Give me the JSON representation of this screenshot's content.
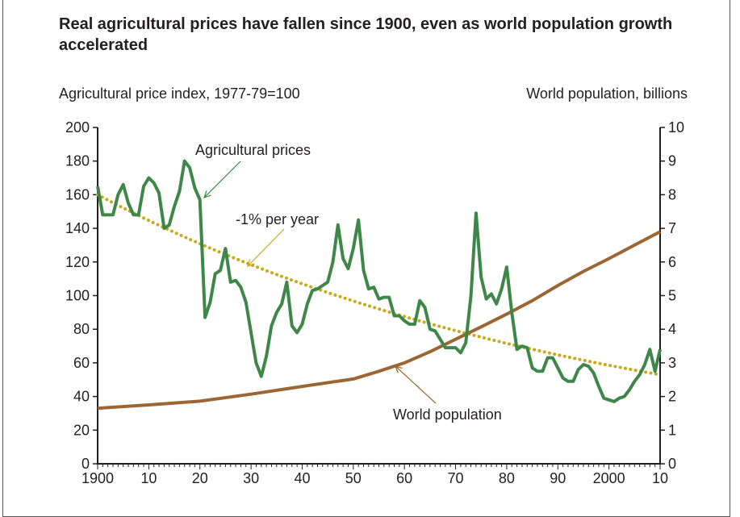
{
  "chart_data": {
    "type": "line",
    "title": "Real agricultural prices have fallen since 1900, even as world population growth accelerated",
    "ylabel_left": "Agricultural price index, 1977-79=100",
    "ylabel_right": "World population, billions",
    "xlim": [
      1900,
      2010
    ],
    "ylim_left": [
      0,
      200
    ],
    "ylim_right": [
      0,
      10
    ],
    "x_ticks": [
      "1900",
      "10",
      "20",
      "30",
      "40",
      "50",
      "60",
      "70",
      "80",
      "90",
      "2000",
      "10"
    ],
    "y_ticks_left": [
      "0",
      "20",
      "40",
      "60",
      "80",
      "100",
      "120",
      "140",
      "160",
      "180",
      "200"
    ],
    "y_ticks_right": [
      "0",
      "1",
      "2",
      "3",
      "4",
      "5",
      "6",
      "7",
      "8",
      "9",
      "10"
    ],
    "grid": false,
    "annotations": {
      "prices": "Agricultural prices",
      "trend": "-1% per year",
      "population": "World population"
    },
    "series": [
      {
        "name": "Agricultural prices",
        "axis": "left",
        "color": "#3e8748",
        "x_start": 1900,
        "values": [
          165,
          148,
          148,
          148,
          160,
          166,
          155,
          148,
          148,
          165,
          170,
          167,
          161,
          140,
          142,
          153,
          162,
          180,
          176,
          164,
          157,
          87,
          96,
          113,
          115,
          128,
          108,
          109,
          105,
          96,
          78,
          60,
          52,
          64,
          82,
          90,
          95,
          108,
          82,
          78,
          83,
          95,
          103,
          104,
          106,
          108,
          120,
          142,
          122,
          116,
          128,
          145,
          115,
          104,
          105,
          98,
          99,
          99,
          88,
          88,
          85,
          83,
          83,
          97,
          93,
          80,
          79,
          74,
          69,
          69,
          69,
          66,
          72,
          100,
          149,
          111,
          98,
          101,
          95,
          104,
          117,
          90,
          68,
          70,
          69,
          57,
          55,
          55,
          63,
          63,
          57,
          51,
          49,
          49,
          56,
          59,
          58,
          54,
          46,
          39,
          38,
          37,
          39,
          40,
          44,
          49,
          53,
          59,
          68,
          55,
          68
        ]
      },
      {
        "name": "-1% per year",
        "axis": "left",
        "color": "#c9a91c",
        "style": "dotted",
        "start_value": 160,
        "annual_rate": -0.01
      },
      {
        "name": "World population",
        "axis": "right",
        "color": "#9b6633",
        "x": [
          1900,
          1910,
          1920,
          1930,
          1940,
          1950,
          1955,
          1960,
          1965,
          1970,
          1975,
          1980,
          1985,
          1990,
          1995,
          2000,
          2005,
          2010
        ],
        "values": [
          1.65,
          1.75,
          1.86,
          2.07,
          2.3,
          2.52,
          2.75,
          3.0,
          3.33,
          3.7,
          4.07,
          4.45,
          4.85,
          5.3,
          5.72,
          6.1,
          6.5,
          6.9
        ]
      }
    ]
  }
}
